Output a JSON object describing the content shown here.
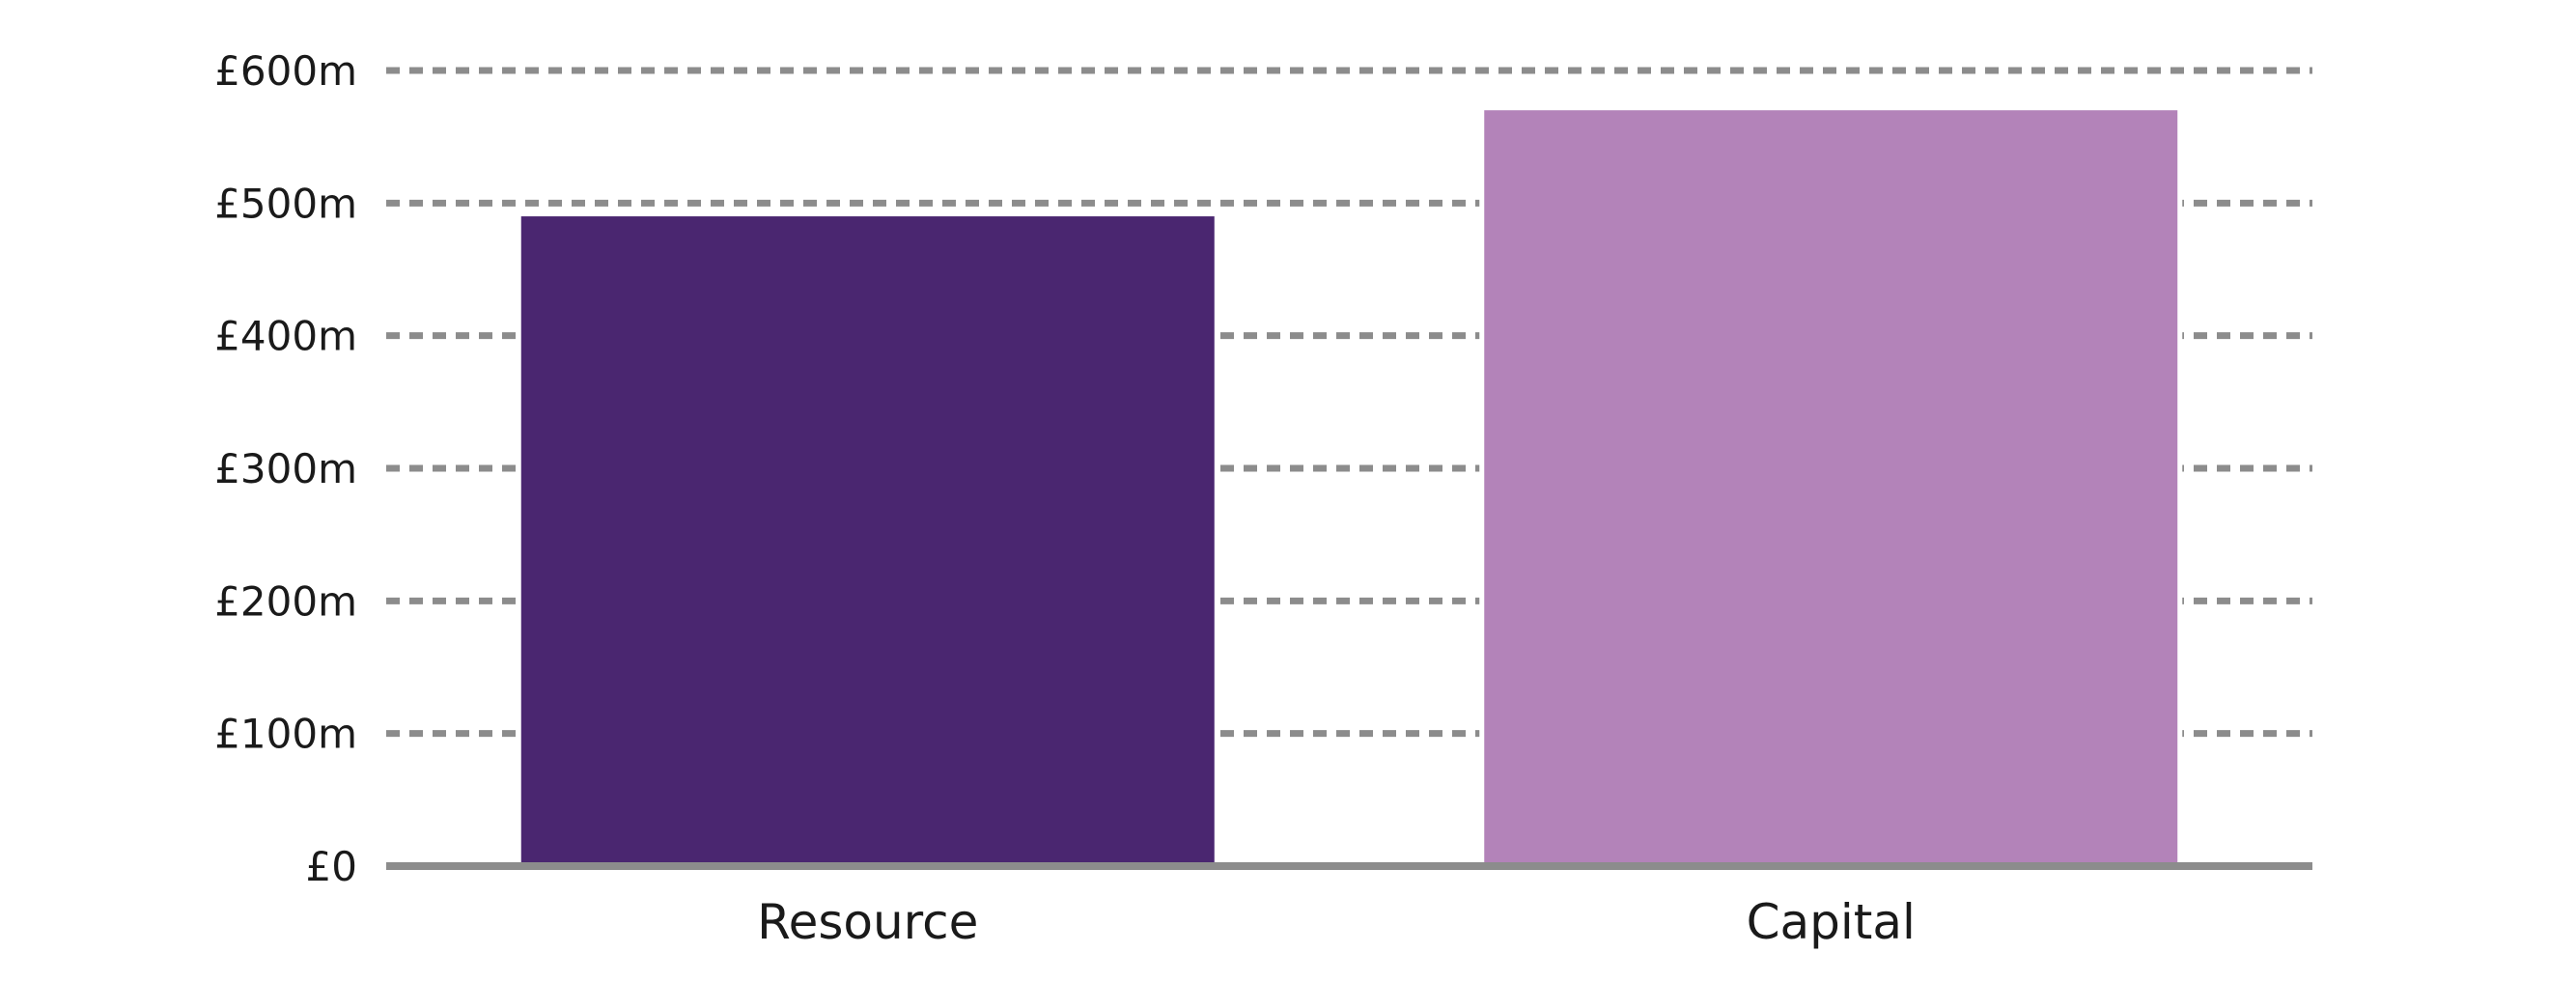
{
  "chart_data": {
    "type": "bar",
    "categories": [
      "Resource",
      "Capital"
    ],
    "values": [
      490,
      570
    ],
    "colors": [
      "#4a2670",
      "#b383b9"
    ],
    "ylim": [
      0,
      600
    ],
    "yticks": [
      0,
      100,
      200,
      300,
      400,
      500,
      600
    ],
    "ytick_labels": [
      "£0",
      "£100m",
      "£200m",
      "£300m",
      "£400m",
      "£500m",
      "£600m"
    ],
    "grid": true,
    "grid_style": "dashed",
    "grid_color": "#8c8c8c",
    "axis_color": "#8c8c8c",
    "title": "",
    "xlabel": "",
    "ylabel": ""
  }
}
